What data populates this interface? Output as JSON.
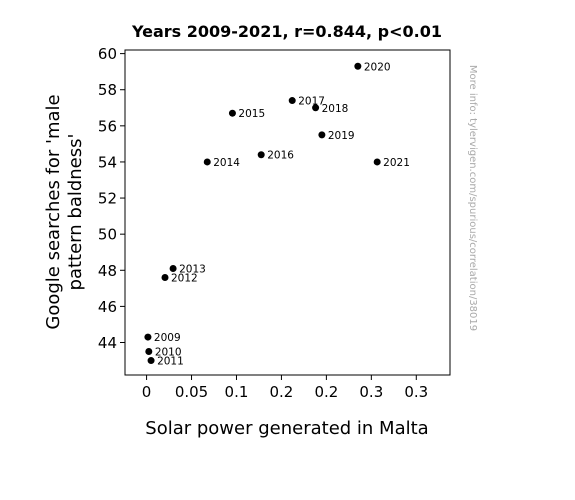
{
  "chart_data": {
    "type": "scatter",
    "title": "Years 2009-2021, r=0.844, p<0.01",
    "xlabel": "Solar power generated in Malta",
    "ylabel_lines": [
      "Google searches for 'male",
      "pattern baldness'"
    ],
    "watermark": "More info: tylervigen.com/spurious/correlation/38019",
    "xlim": [
      -0.024,
      0.3375
    ],
    "ylim": [
      42.2,
      60.2
    ],
    "grid": false,
    "x_ticks": [
      0,
      0.05,
      0.1,
      0.15,
      0.2,
      0.25,
      0.3
    ],
    "x_tick_labels": [
      "0",
      "0.05",
      "0.1",
      "0.2",
      "0.2",
      "0.3",
      "0.3"
    ],
    "y_ticks": [
      44,
      46,
      48,
      50,
      52,
      54,
      56,
      58,
      60
    ],
    "y_tick_labels": [
      "44",
      "46",
      "48",
      "50",
      "52",
      "54",
      "56",
      "58",
      "60"
    ],
    "marker_color": "#000000",
    "points": [
      {
        "label": "2009",
        "x": 0.0015,
        "y": 44.3
      },
      {
        "label": "2010",
        "x": 0.0025,
        "y": 43.5
      },
      {
        "label": "2011",
        "x": 0.005,
        "y": 43.0
      },
      {
        "label": "2012",
        "x": 0.0205,
        "y": 47.6
      },
      {
        "label": "2013",
        "x": 0.0295,
        "y": 48.1
      },
      {
        "label": "2014",
        "x": 0.0675,
        "y": 54.0
      },
      {
        "label": "2015",
        "x": 0.0955,
        "y": 56.7
      },
      {
        "label": "2016",
        "x": 0.1275,
        "y": 54.4
      },
      {
        "label": "2017",
        "x": 0.162,
        "y": 57.4
      },
      {
        "label": "2018",
        "x": 0.188,
        "y": 57.0
      },
      {
        "label": "2019",
        "x": 0.195,
        "y": 55.5
      },
      {
        "label": "2020",
        "x": 0.235,
        "y": 59.3
      },
      {
        "label": "2021",
        "x": 0.2565,
        "y": 54.0
      }
    ]
  }
}
